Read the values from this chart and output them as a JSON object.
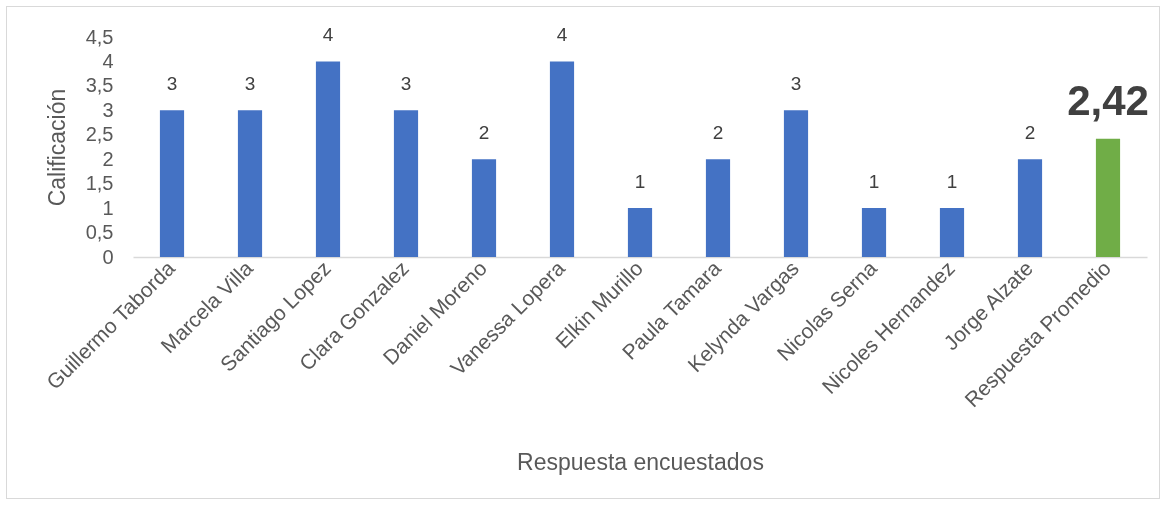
{
  "chart_data": {
    "type": "bar",
    "xlabel": "Respuesta encuestados",
    "ylabel": "Calificación",
    "categories": [
      "Guillermo Taborda",
      "Marcela Villa",
      "Santiago Lopez",
      "Clara Gonzalez",
      "Daniel Moreno",
      "Vanessa Lopera",
      "Elkin Murillo",
      "Paula Tamara",
      "Kelynda Vargas",
      "Nicolas Serna",
      "Nicoles Hernandez",
      "Jorge Alzate",
      "Respuesta Promedio"
    ],
    "values": [
      3,
      3,
      4,
      3,
      2,
      4,
      1,
      2,
      3,
      1,
      1,
      2,
      2.42
    ],
    "colors": [
      "#4472c4",
      "#4472c4",
      "#4472c4",
      "#4472c4",
      "#4472c4",
      "#4472c4",
      "#4472c4",
      "#4472c4",
      "#4472c4",
      "#4472c4",
      "#4472c4",
      "#4472c4",
      "#70ad47"
    ],
    "value_labels": [
      "3",
      "3",
      "4",
      "3",
      "2",
      "4",
      "1",
      "2",
      "3",
      "1",
      "1",
      "2",
      "2,42"
    ],
    "ylim": [
      0,
      4.5
    ],
    "yticks": [
      0,
      {
        "value": 0.5,
        "label": "0,5"
      },
      1,
      {
        "value": 1.5,
        "label": "1,5"
      },
      2,
      {
        "value": 2.5,
        "label": "2,5"
      },
      3,
      {
        "value": 3.5,
        "label": "3,5"
      },
      4,
      {
        "value": 4.5,
        "label": "4,5"
      }
    ]
  }
}
